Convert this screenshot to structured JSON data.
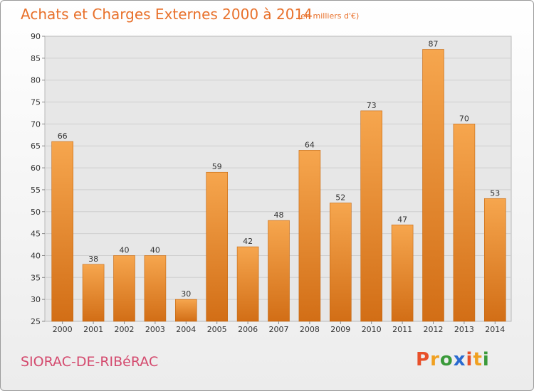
{
  "header": {
    "title": "Achats et Charges Externes 2000 à 2014",
    "subtitle": "(en milliers d'€)"
  },
  "footer": {
    "city": "SIORAC-DE-RIBéRAC",
    "logo": [
      "P",
      "r",
      "o",
      "x",
      "i",
      "t",
      "i"
    ],
    "logo_colors": [
      "#e8502a",
      "#f0a020",
      "#3a9a3a",
      "#2a6ad0",
      "#e8502a",
      "#f0a020",
      "#3a9a3a"
    ]
  },
  "chart_data": {
    "type": "bar",
    "title": "Achats et Charges Externes 2000 à 2014",
    "subtitle": "(en milliers d'€)",
    "categories": [
      "2000",
      "2001",
      "2002",
      "2003",
      "2004",
      "2005",
      "2006",
      "2007",
      "2008",
      "2009",
      "2010",
      "2011",
      "2012",
      "2013",
      "2014"
    ],
    "values": [
      66,
      38,
      40,
      40,
      30,
      59,
      42,
      48,
      64,
      52,
      73,
      47,
      87,
      70,
      53
    ],
    "ylim": [
      25,
      90
    ],
    "yticks": [
      25,
      30,
      35,
      40,
      45,
      50,
      55,
      60,
      65,
      70,
      75,
      80,
      85,
      90
    ],
    "grid": true,
    "bar_color": "#f0922e",
    "bar_color_dark": "#d4731a",
    "data_labels": true
  }
}
